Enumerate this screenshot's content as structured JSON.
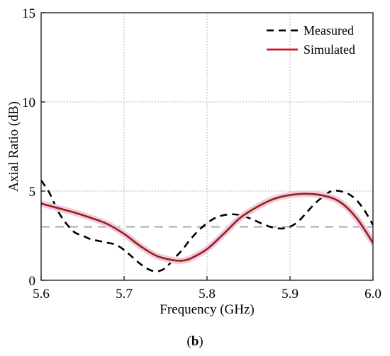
{
  "chart_data": {
    "type": "line",
    "title": "",
    "xlabel": "Frequency (GHz)",
    "ylabel": "Axial Ratio (dB)",
    "xlim": [
      5.6,
      6.0
    ],
    "ylim": [
      0,
      15
    ],
    "x_ticks": [
      "5.6",
      "5.7",
      "5.8",
      "5.9",
      "6.0"
    ],
    "y_ticks": [
      "0",
      "5",
      "10",
      "15"
    ],
    "x_tick_values": [
      5.6,
      5.7,
      5.8,
      5.9,
      6.0
    ],
    "y_tick_values": [
      0,
      5,
      10,
      15
    ],
    "grid": true,
    "legend_position": "top-right",
    "panel_label": {
      "open": "(",
      "letter": "b",
      "close": ")"
    },
    "reference_line": {
      "y": 3,
      "color": "#bdbdbd"
    },
    "series": [
      {
        "name": "Measured",
        "style": "dashed",
        "color": "#000000",
        "points": [
          [
            5.6,
            5.6
          ],
          [
            5.61,
            4.9
          ],
          [
            5.62,
            3.9
          ],
          [
            5.63,
            3.2
          ],
          [
            5.64,
            2.7
          ],
          [
            5.65,
            2.5
          ],
          [
            5.66,
            2.3
          ],
          [
            5.67,
            2.2
          ],
          [
            5.68,
            2.1
          ],
          [
            5.69,
            2.0
          ],
          [
            5.7,
            1.7
          ],
          [
            5.71,
            1.3
          ],
          [
            5.72,
            0.9
          ],
          [
            5.73,
            0.6
          ],
          [
            5.74,
            0.5
          ],
          [
            5.75,
            0.7
          ],
          [
            5.76,
            1.2
          ],
          [
            5.77,
            1.7
          ],
          [
            5.78,
            2.3
          ],
          [
            5.79,
            2.8
          ],
          [
            5.8,
            3.2
          ],
          [
            5.81,
            3.5
          ],
          [
            5.82,
            3.65
          ],
          [
            5.83,
            3.7
          ],
          [
            5.84,
            3.65
          ],
          [
            5.85,
            3.5
          ],
          [
            5.86,
            3.3
          ],
          [
            5.87,
            3.1
          ],
          [
            5.88,
            2.95
          ],
          [
            5.89,
            2.9
          ],
          [
            5.9,
            3.0
          ],
          [
            5.91,
            3.3
          ],
          [
            5.92,
            3.8
          ],
          [
            5.93,
            4.3
          ],
          [
            5.94,
            4.7
          ],
          [
            5.95,
            5.0
          ],
          [
            5.96,
            5.0
          ],
          [
            5.97,
            4.85
          ],
          [
            5.98,
            4.5
          ],
          [
            5.99,
            3.9
          ],
          [
            6.0,
            3.1
          ]
        ]
      },
      {
        "name": "Simulated",
        "style": "solid",
        "color": "#8b2a0a",
        "points": [
          [
            5.6,
            4.3
          ],
          [
            5.62,
            4.05
          ],
          [
            5.64,
            3.8
          ],
          [
            5.66,
            3.5
          ],
          [
            5.68,
            3.15
          ],
          [
            5.7,
            2.6
          ],
          [
            5.72,
            1.9
          ],
          [
            5.74,
            1.35
          ],
          [
            5.76,
            1.12
          ],
          [
            5.77,
            1.1
          ],
          [
            5.78,
            1.22
          ],
          [
            5.8,
            1.75
          ],
          [
            5.82,
            2.6
          ],
          [
            5.84,
            3.5
          ],
          [
            5.86,
            4.1
          ],
          [
            5.88,
            4.55
          ],
          [
            5.9,
            4.78
          ],
          [
            5.92,
            4.85
          ],
          [
            5.94,
            4.75
          ],
          [
            5.96,
            4.4
          ],
          [
            5.98,
            3.5
          ],
          [
            6.0,
            2.1
          ]
        ]
      }
    ]
  }
}
